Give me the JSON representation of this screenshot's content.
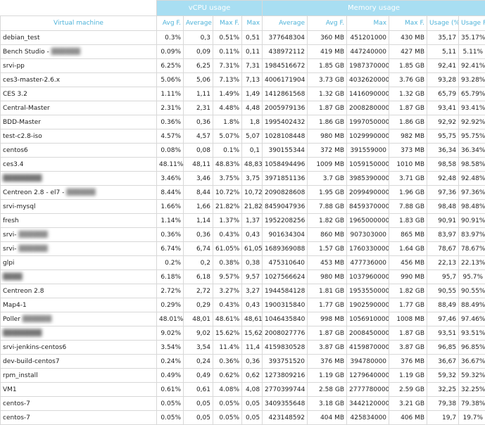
{
  "header": {
    "groups": [
      "vCPU usage",
      "Memory usage"
    ],
    "columns": [
      "Virtual machine",
      "Avg F.",
      "Average",
      "Max F.",
      "Max",
      "Average",
      "Avg F.",
      "Max",
      "Max F.",
      "Usage (%)",
      "Usage F. (%)"
    ]
  },
  "table": {
    "rows": [
      [
        "debian_test",
        "0.3%",
        "0,3",
        "0.51%",
        "0,51",
        "377648304",
        "360 MB",
        "451201000",
        "430 MB",
        "35,17",
        "35.17%"
      ],
      [
        "Bench Studio -",
        "0.09%",
        "0,09",
        "0.11%",
        "0,11",
        "438972112",
        "419 MB",
        "447240000",
        "427 MB",
        "5,11",
        "5.11%"
      ],
      [
        "srvi-pp",
        "6.25%",
        "6,25",
        "7.31%",
        "7,31",
        "1984516672",
        "1.85 GB",
        "1987370000",
        "1.85 GB",
        "92,41",
        "92.41%"
      ],
      [
        "ces3-master-2.6.x",
        "5.06%",
        "5,06",
        "7.13%",
        "7,13",
        "4006171904",
        "3.73 GB",
        "4032620000",
        "3.76 GB",
        "93,28",
        "93.28%"
      ],
      [
        "CES 3.2",
        "1.11%",
        "1,11",
        "1.49%",
        "1,49",
        "1412861568",
        "1.32 GB",
        "1416090000",
        "1.32 GB",
        "65,79",
        "65.79%"
      ],
      [
        "Central-Master",
        "2.31%",
        "2,31",
        "4.48%",
        "4,48",
        "2005979136",
        "1.87 GB",
        "2008280000",
        "1.87 GB",
        "93,41",
        "93.41%"
      ],
      [
        "BDD-Master",
        "0.36%",
        "0,36",
        "1.8%",
        "1,8",
        "1995402432",
        "1.86 GB",
        "1997050000",
        "1.86 GB",
        "92,92",
        "92.92%"
      ],
      [
        "test-c2.8-iso",
        "4.57%",
        "4,57",
        "5.07%",
        "5,07",
        "1028108448",
        "980 MB",
        "1029990000",
        "982 MB",
        "95,75",
        "95.75%"
      ],
      [
        "centos6",
        "0.08%",
        "0,08",
        "0.1%",
        "0,1",
        "390155344",
        "372 MB",
        "391559000",
        "373 MB",
        "36,34",
        "36.34%"
      ],
      [
        "ces3.4",
        "48.11%",
        "48,11",
        "48.83%",
        "48,83",
        "1058494496",
        "1009 MB",
        "1059150000",
        "1010 MB",
        "98,58",
        "98.58%"
      ],
      [
        "████████",
        "3.46%",
        "3,46",
        "3.75%",
        "3,75",
        "3971851136",
        "3.7 GB",
        "3985390000",
        "3.71 GB",
        "92,48",
        "92.48%"
      ],
      [
        "Centreon 2.8 - el7 -",
        "8.44%",
        "8,44",
        "10.72%",
        "10,72",
        "2090828608",
        "1.95 GB",
        "2099490000",
        "1.96 GB",
        "97,36",
        "97.36%"
      ],
      [
        "srvi-mysql",
        "1.66%",
        "1,66",
        "21.82%",
        "21,82",
        "8459047936",
        "7.88 GB",
        "8459370000",
        "7.88 GB",
        "98,48",
        "98.48%"
      ],
      [
        "fresh",
        "1.14%",
        "1,14",
        "1.37%",
        "1,37",
        "1952208256",
        "1.82 GB",
        "1965000000",
        "1.83 GB",
        "90,91",
        "90.91%"
      ],
      [
        "srvi-",
        "0.36%",
        "0,36",
        "0.43%",
        "0,43",
        "901634304",
        "860 MB",
        "907303000",
        "865 MB",
        "83,97",
        "83.97%"
      ],
      [
        "srvi-",
        "6.74%",
        "6,74",
        "61.05%",
        "61,05",
        "1689369088",
        "1.57 GB",
        "1760330000",
        "1.64 GB",
        "78,67",
        "78.67%"
      ],
      [
        "glpi",
        "0.2%",
        "0,2",
        "0.38%",
        "0,38",
        "475310640",
        "453 MB",
        "477736000",
        "456 MB",
        "22,13",
        "22.13%"
      ],
      [
        "████",
        "6.18%",
        "6,18",
        "9.57%",
        "9,57",
        "1027566624",
        "980 MB",
        "1037960000",
        "990 MB",
        "95,7",
        "95.7%"
      ],
      [
        "Centreon 2.8",
        "2.72%",
        "2,72",
        "3.27%",
        "3,27",
        "1944584128",
        "1.81 GB",
        "1953550000",
        "1.82 GB",
        "90,55",
        "90.55%"
      ],
      [
        "Map4-1",
        "0.29%",
        "0,29",
        "0.43%",
        "0,43",
        "1900315840",
        "1.77 GB",
        "1902590000",
        "1.77 GB",
        "88,49",
        "88.49%"
      ],
      [
        "Poller",
        "48.01%",
        "48,01",
        "48.61%",
        "48,61",
        "1046435840",
        "998 MB",
        "1056910000",
        "1008 MB",
        "97,46",
        "97.46%"
      ],
      [
        "████████",
        "9.02%",
        "9,02",
        "15.62%",
        "15,62",
        "2008027776",
        "1.87 GB",
        "2008450000",
        "1.87 GB",
        "93,51",
        "93.51%"
      ],
      [
        "srvi-jenkins-centos6",
        "3.54%",
        "3,54",
        "11.4%",
        "11,4",
        "4159830528",
        "3.87 GB",
        "4159870000",
        "3.87 GB",
        "96,85",
        "96.85%"
      ],
      [
        "dev-build-centos7",
        "0.24%",
        "0,24",
        "0.36%",
        "0,36",
        "393751520",
        "376 MB",
        "394780000",
        "376 MB",
        "36,67",
        "36.67%"
      ],
      [
        "rpm_install",
        "0.49%",
        "0,49",
        "0.62%",
        "0,62",
        "1273809216",
        "1.19 GB",
        "1279640000",
        "1.19 GB",
        "59,32",
        "59.32%"
      ],
      [
        "VM1",
        "0.61%",
        "0,61",
        "4.08%",
        "4,08",
        "2770399744",
        "2.58 GB",
        "2777780000",
        "2.59 GB",
        "32,25",
        "32.25%"
      ],
      [
        "centos-7",
        "0.05%",
        "0,05",
        "0.05%",
        "0,05",
        "3409355648",
        "3.18 GB",
        "3442120000",
        "3.21 GB",
        "79,38",
        "79.38%"
      ],
      [
        "centos-7",
        "0.05%",
        "0,05",
        "0.05%",
        "0,05",
        "423148592",
        "404 MB",
        "425834000",
        "406 MB",
        "19,7",
        "19.7%"
      ]
    ]
  }
}
